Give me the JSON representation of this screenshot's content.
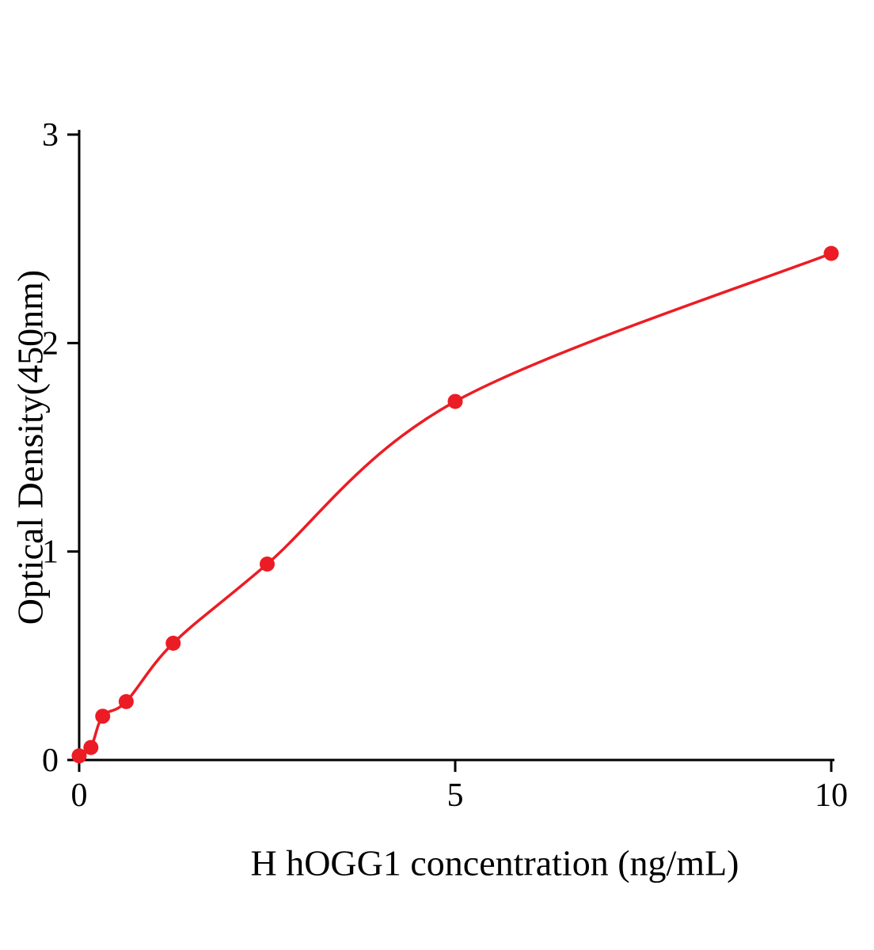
{
  "chart_data": {
    "type": "scatter",
    "title": "",
    "xlabel": "H hOGG1 concentration (ng/mL)",
    "ylabel": "Optical Density(450nm)",
    "x": [
      0,
      0.156,
      0.313,
      0.625,
      1.25,
      2.5,
      5,
      10
    ],
    "y": [
      0.02,
      0.06,
      0.21,
      0.28,
      0.56,
      0.94,
      1.72,
      2.43
    ],
    "xlim": [
      0,
      10
    ],
    "ylim": [
      0,
      3
    ],
    "x_ticks": [
      0,
      5,
      10
    ],
    "y_ticks": [
      0,
      1,
      2,
      3
    ],
    "curve_style": "smooth fit line through points",
    "accent_color": "#ec1c24",
    "axis_color": "#000000",
    "grid": false,
    "legend": "none"
  }
}
